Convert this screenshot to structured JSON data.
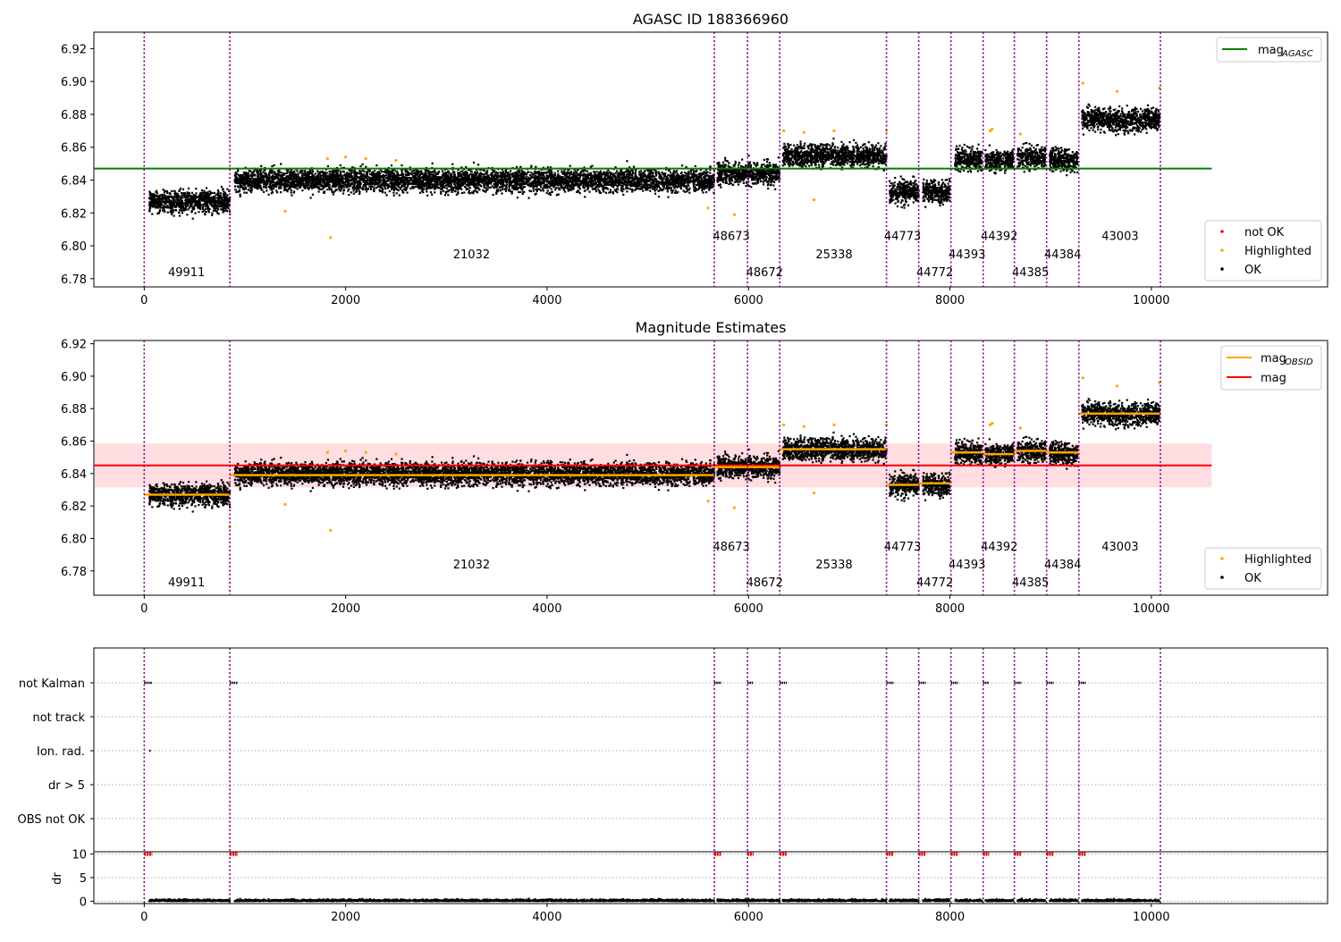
{
  "chart_data": [
    {
      "type": "scatter",
      "title": "AGASC ID 188366960",
      "xlim": [
        -500,
        11750
      ],
      "ylim": [
        6.775,
        6.93
      ],
      "xticks": [
        0,
        2000,
        4000,
        6000,
        8000,
        10000
      ],
      "yticks": [
        6.78,
        6.8,
        6.82,
        6.84,
        6.86,
        6.88,
        6.9,
        6.92
      ],
      "legend_top": {
        "placement": "top-right",
        "entries": [
          {
            "label_main": "mag",
            "label_sub": "AGASC",
            "color": "#008000",
            "kind": "line"
          }
        ]
      },
      "legend_bottom": {
        "placement": "lower-right",
        "entries": [
          {
            "label": "not OK",
            "color": "#ff0000",
            "kind": "dot"
          },
          {
            "label": "Highlighted",
            "color": "#ffa500",
            "kind": "dot"
          },
          {
            "label": "OK",
            "color": "#000000",
            "kind": "dot"
          }
        ]
      },
      "hlines": [
        {
          "name": "mag_AGASC",
          "y": 6.847,
          "x": [
            -500,
            10600
          ],
          "color": "#008000"
        }
      ],
      "series": [
        {
          "name": "OK",
          "color": "#000000",
          "segments": [
            {
              "x": [
                50,
                850
              ],
              "y": 6.827
            },
            {
              "x": [
                900,
                5660
              ],
              "y": 6.84
            },
            {
              "x": [
                5690,
                6310
              ],
              "y": 6.844
            },
            {
              "x": [
                6340,
                7370
              ],
              "y": 6.855
            },
            {
              "x": [
                7400,
                7690
              ],
              "y": 6.833
            },
            {
              "x": [
                7730,
                8000
              ],
              "y": 6.833
            },
            {
              "x": [
                8050,
                8320
              ],
              "y": 6.853
            },
            {
              "x": [
                8350,
                8630
              ],
              "y": 6.852
            },
            {
              "x": [
                8670,
                8950
              ],
              "y": 6.854
            },
            {
              "x": [
                8990,
                9270
              ],
              "y": 6.852
            },
            {
              "x": [
                9310,
                10080
              ],
              "y": 6.877
            }
          ]
        },
        {
          "name": "Highlighted",
          "color": "#ffa500",
          "points": [
            [
              850,
              6.807
            ],
            [
              1400,
              6.821
            ],
            [
              1820,
              6.853
            ],
            [
              1850,
              6.805
            ],
            [
              2000,
              6.854
            ],
            [
              2200,
              6.853
            ],
            [
              2500,
              6.852
            ],
            [
              5600,
              6.823
            ],
            [
              5860,
              6.819
            ],
            [
              6350,
              6.87
            ],
            [
              6550,
              6.869
            ],
            [
              6650,
              6.828
            ],
            [
              6850,
              6.87
            ],
            [
              7370,
              6.87
            ],
            [
              8400,
              6.87
            ],
            [
              8420,
              6.871
            ],
            [
              8700,
              6.868
            ],
            [
              9320,
              6.899
            ],
            [
              9660,
              6.894
            ],
            [
              10080,
              6.896
            ]
          ]
        }
      ],
      "obsid_boundaries": [
        0,
        850,
        5660,
        5990,
        6310,
        7370,
        7690,
        8010,
        8330,
        8640,
        8960,
        9280,
        10090
      ],
      "obsid_labels": [
        {
          "text": "49911",
          "x": 420,
          "y": 6.7815
        },
        {
          "text": "21032",
          "x": 3250,
          "y": 6.7925
        },
        {
          "text": "48673",
          "x": 5830,
          "y": 6.8035
        },
        {
          "text": "48672",
          "x": 6160,
          "y": 6.7815
        },
        {
          "text": "25338",
          "x": 6850,
          "y": 6.7925
        },
        {
          "text": "44773",
          "x": 7530,
          "y": 6.8035
        },
        {
          "text": "44772",
          "x": 7850,
          "y": 6.7815
        },
        {
          "text": "44393",
          "x": 8170,
          "y": 6.7925
        },
        {
          "text": "44392",
          "x": 8490,
          "y": 6.8035
        },
        {
          "text": "44385",
          "x": 8800,
          "y": 6.7815
        },
        {
          "text": "44384",
          "x": 9120,
          "y": 6.7925
        },
        {
          "text": "43003",
          "x": 9690,
          "y": 6.8035
        }
      ]
    },
    {
      "type": "scatter",
      "title": "Magnitude Estimates",
      "xlim": [
        -500,
        11750
      ],
      "ylim": [
        6.765,
        6.922
      ],
      "xticks": [
        0,
        2000,
        4000,
        6000,
        8000,
        10000
      ],
      "yticks": [
        6.78,
        6.8,
        6.82,
        6.84,
        6.86,
        6.88,
        6.9,
        6.92
      ],
      "legend_top": {
        "placement": "top-right",
        "entries": [
          {
            "label_main": "mag",
            "label_sub": "OBSID",
            "color": "#ffa500",
            "kind": "line"
          },
          {
            "label_main": "mag",
            "label_sub": "",
            "color": "#ff0000",
            "kind": "line"
          }
        ]
      },
      "legend_bottom": {
        "placement": "lower-right",
        "entries": [
          {
            "label": "Highlighted",
            "color": "#ffa500",
            "kind": "dot"
          },
          {
            "label": "OK",
            "color": "#000000",
            "kind": "dot"
          }
        ]
      },
      "band": {
        "y": [
          6.8315,
          6.8585
        ],
        "x": [
          -500,
          10600
        ],
        "color": "#ffdde0"
      },
      "hlines": [
        {
          "name": "mag",
          "y": 6.845,
          "x": [
            -500,
            10600
          ],
          "color": "#ff0000"
        }
      ],
      "obsid_mags": [
        {
          "x": [
            0,
            850
          ],
          "y": 6.827
        },
        {
          "x": [
            850,
            5660
          ],
          "y": 6.839
        },
        {
          "x": [
            5660,
            5990
          ],
          "y": 6.844
        },
        {
          "x": [
            5990,
            6310
          ],
          "y": 6.844
        },
        {
          "x": [
            6310,
            7370
          ],
          "y": 6.855
        },
        {
          "x": [
            7370,
            7690
          ],
          "y": 6.833
        },
        {
          "x": [
            7690,
            8010
          ],
          "y": 6.834
        },
        {
          "x": [
            8010,
            8330
          ],
          "y": 6.853
        },
        {
          "x": [
            8330,
            8640
          ],
          "y": 6.852
        },
        {
          "x": [
            8640,
            8960
          ],
          "y": 6.854
        },
        {
          "x": [
            8960,
            9280
          ],
          "y": 6.853
        },
        {
          "x": [
            9280,
            10090
          ],
          "y": 6.877
        }
      ],
      "obsid_labels": [
        {
          "text": "49911",
          "x": 420,
          "y": 6.7705
        },
        {
          "text": "21032",
          "x": 3250,
          "y": 6.7815
        },
        {
          "text": "48673",
          "x": 5830,
          "y": 6.7925
        },
        {
          "text": "48672",
          "x": 6160,
          "y": 6.7705
        },
        {
          "text": "25338",
          "x": 6850,
          "y": 6.7815
        },
        {
          "text": "44773",
          "x": 7530,
          "y": 6.7925
        },
        {
          "text": "44772",
          "x": 7850,
          "y": 6.7705
        },
        {
          "text": "44393",
          "x": 8170,
          "y": 6.7815
        },
        {
          "text": "44392",
          "x": 8490,
          "y": 6.7925
        },
        {
          "text": "44385",
          "x": 8800,
          "y": 6.7705
        },
        {
          "text": "44384",
          "x": 9120,
          "y": 6.7815
        },
        {
          "text": "43003",
          "x": 9690,
          "y": 6.7925
        }
      ]
    },
    {
      "type": "scatter",
      "title": "",
      "xlim": [
        -500,
        11750
      ],
      "categories": [
        "not Kalman",
        "not track",
        "Ion. rad.",
        "dr > 5",
        "OBS not OK"
      ],
      "flag_hits": {
        "not Kalman": [
          [
            0,
            80
          ],
          [
            850,
            930
          ],
          [
            5660,
            5730
          ],
          [
            5990,
            6050
          ],
          [
            6310,
            6380
          ],
          [
            7370,
            7440
          ],
          [
            7690,
            7760
          ],
          [
            8010,
            8080
          ],
          [
            8330,
            8390
          ],
          [
            8640,
            8710
          ],
          [
            8960,
            9030
          ],
          [
            9280,
            9350
          ]
        ],
        "Ion. rad.": [
          [
            50,
            70
          ]
        ]
      },
      "dr_panel": {
        "ylabel": "dr",
        "yticks": [
          0,
          5,
          10
        ],
        "ylim": [
          -0.5,
          10.5
        ],
        "high_dr": [
          [
            0,
            80
          ],
          [
            850,
            930
          ],
          [
            5660,
            5730
          ],
          [
            5990,
            6050
          ],
          [
            6310,
            6380
          ],
          [
            7370,
            7440
          ],
          [
            7690,
            7760
          ],
          [
            8010,
            8080
          ],
          [
            8330,
            8390
          ],
          [
            8640,
            8710
          ],
          [
            8960,
            9030
          ],
          [
            9280,
            9350
          ]
        ],
        "low_dr_segments": [
          [
            50,
            850
          ],
          [
            900,
            5660
          ],
          [
            5690,
            6310
          ],
          [
            6340,
            7370
          ],
          [
            7400,
            7690
          ],
          [
            7730,
            8000
          ],
          [
            8050,
            8320
          ],
          [
            8350,
            8630
          ],
          [
            8670,
            8950
          ],
          [
            8990,
            9270
          ],
          [
            9310,
            10080
          ]
        ]
      },
      "xticks": [
        0,
        2000,
        4000,
        6000,
        8000,
        10000
      ]
    }
  ]
}
